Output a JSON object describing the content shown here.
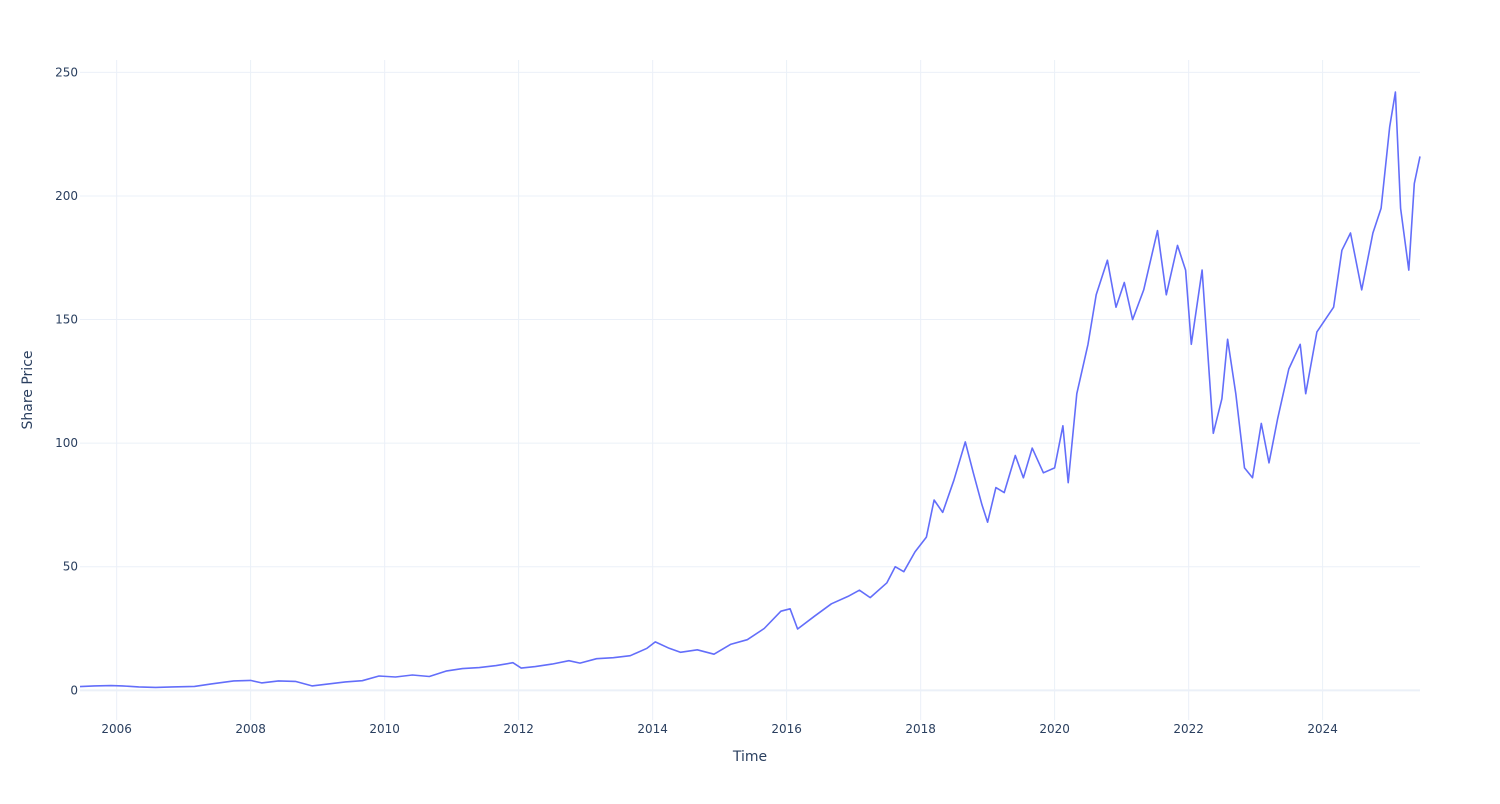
{
  "chart_data": {
    "type": "line",
    "title": "",
    "xlabel": "Time",
    "ylabel": "Share Price",
    "xlim": [
      "2005-06-15",
      "2025-06-15"
    ],
    "ylim": [
      -12,
      255
    ],
    "grid": true,
    "legend": "none",
    "line_color": "#636efa",
    "x_ticks": [
      "2006",
      "2008",
      "2010",
      "2012",
      "2014",
      "2016",
      "2018",
      "2020",
      "2022",
      "2024"
    ],
    "y_ticks": [
      0,
      50,
      100,
      150,
      200,
      250
    ],
    "series": [
      {
        "points": [
          [
            "2005-06-15",
            1.5
          ],
          [
            "2005-09-01",
            1.8
          ],
          [
            "2005-12-01",
            1.9
          ],
          [
            "2006-02-01",
            1.8
          ],
          [
            "2006-05-01",
            1.4
          ],
          [
            "2006-08-01",
            1.2
          ],
          [
            "2006-11-01",
            1.4
          ],
          [
            "2007-03-01",
            1.6
          ],
          [
            "2007-06-01",
            2.6
          ],
          [
            "2007-10-01",
            3.8
          ],
          [
            "2008-01-01",
            4.0
          ],
          [
            "2008-03-01",
            3.0
          ],
          [
            "2008-06-01",
            3.8
          ],
          [
            "2008-09-01",
            3.6
          ],
          [
            "2008-12-01",
            1.8
          ],
          [
            "2009-03-01",
            2.6
          ],
          [
            "2009-06-01",
            3.4
          ],
          [
            "2009-09-01",
            3.9
          ],
          [
            "2009-12-01",
            5.8
          ],
          [
            "2010-03-01",
            5.4
          ],
          [
            "2010-06-01",
            6.2
          ],
          [
            "2010-09-01",
            5.6
          ],
          [
            "2010-12-01",
            7.8
          ],
          [
            "2011-03-01",
            8.8
          ],
          [
            "2011-06-01",
            9.2
          ],
          [
            "2011-09-01",
            10.0
          ],
          [
            "2011-12-01",
            11.2
          ],
          [
            "2012-01-15",
            9.0
          ],
          [
            "2012-04-01",
            9.6
          ],
          [
            "2012-07-01",
            10.6
          ],
          [
            "2012-10-01",
            12.0
          ],
          [
            "2012-12-01",
            11.0
          ],
          [
            "2013-03-01",
            12.8
          ],
          [
            "2013-06-01",
            13.2
          ],
          [
            "2013-09-01",
            14.0
          ],
          [
            "2013-12-01",
            17.0
          ],
          [
            "2014-01-15",
            19.6
          ],
          [
            "2014-04-01",
            17.0
          ],
          [
            "2014-06-01",
            15.4
          ],
          [
            "2014-09-01",
            16.4
          ],
          [
            "2014-12-01",
            14.6
          ],
          [
            "2015-03-01",
            18.6
          ],
          [
            "2015-06-01",
            20.5
          ],
          [
            "2015-09-01",
            25.0
          ],
          [
            "2015-12-01",
            32.0
          ],
          [
            "2016-01-20",
            33.0
          ],
          [
            "2016-03-01",
            24.8
          ],
          [
            "2016-06-01",
            30.0
          ],
          [
            "2016-09-01",
            35.0
          ],
          [
            "2016-12-01",
            38.0
          ],
          [
            "2017-02-01",
            40.5
          ],
          [
            "2017-04-01",
            37.5
          ],
          [
            "2017-07-01",
            43.5
          ],
          [
            "2017-08-15",
            50.0
          ],
          [
            "2017-10-01",
            48.0
          ],
          [
            "2017-12-01",
            56.0
          ],
          [
            "2018-02-01",
            62.0
          ],
          [
            "2018-03-15",
            77.0
          ],
          [
            "2018-05-01",
            72.0
          ],
          [
            "2018-07-01",
            85.0
          ],
          [
            "2018-09-01",
            100.5
          ],
          [
            "2018-10-15",
            88.0
          ],
          [
            "2018-12-01",
            75.0
          ],
          [
            "2019-01-01",
            68.0
          ],
          [
            "2019-02-15",
            82.0
          ],
          [
            "2019-04-01",
            80.0
          ],
          [
            "2019-06-01",
            95.0
          ],
          [
            "2019-07-15",
            86.0
          ],
          [
            "2019-09-01",
            98.0
          ],
          [
            "2019-11-01",
            88.0
          ],
          [
            "2020-01-01",
            90.0
          ],
          [
            "2020-02-15",
            107.0
          ],
          [
            "2020-03-15",
            84.0
          ],
          [
            "2020-05-01",
            120.0
          ],
          [
            "2020-07-01",
            140.0
          ],
          [
            "2020-08-15",
            160.0
          ],
          [
            "2020-10-15",
            174.0
          ],
          [
            "2020-12-01",
            155.0
          ],
          [
            "2021-01-15",
            165.0
          ],
          [
            "2021-03-01",
            150.0
          ],
          [
            "2021-05-01",
            162.0
          ],
          [
            "2021-07-15",
            186.0
          ],
          [
            "2021-09-01",
            160.0
          ],
          [
            "2021-11-01",
            180.0
          ],
          [
            "2021-12-15",
            170.0
          ],
          [
            "2022-01-15",
            140.0
          ],
          [
            "2022-03-15",
            170.0
          ],
          [
            "2022-05-15",
            104.0
          ],
          [
            "2022-07-01",
            118.0
          ],
          [
            "2022-08-01",
            142.0
          ],
          [
            "2022-09-15",
            120.0
          ],
          [
            "2022-11-01",
            90.0
          ],
          [
            "2022-12-15",
            86.0
          ],
          [
            "2023-02-01",
            108.0
          ],
          [
            "2023-03-15",
            92.0
          ],
          [
            "2023-05-01",
            110.0
          ],
          [
            "2023-07-01",
            130.0
          ],
          [
            "2023-09-01",
            140.0
          ],
          [
            "2023-10-01",
            120.0
          ],
          [
            "2023-12-01",
            145.0
          ],
          [
            "2024-03-01",
            155.0
          ],
          [
            "2024-04-15",
            178.0
          ],
          [
            "2024-06-01",
            185.0
          ],
          [
            "2024-08-01",
            162.0
          ],
          [
            "2024-10-01",
            185.0
          ],
          [
            "2024-11-15",
            195.0
          ],
          [
            "2025-01-01",
            228.0
          ],
          [
            "2025-02-01",
            242.0
          ],
          [
            "2025-03-01",
            195.0
          ],
          [
            "2025-04-15",
            170.0
          ],
          [
            "2025-05-15",
            205.0
          ],
          [
            "2025-06-15",
            216.0
          ]
        ]
      }
    ]
  }
}
